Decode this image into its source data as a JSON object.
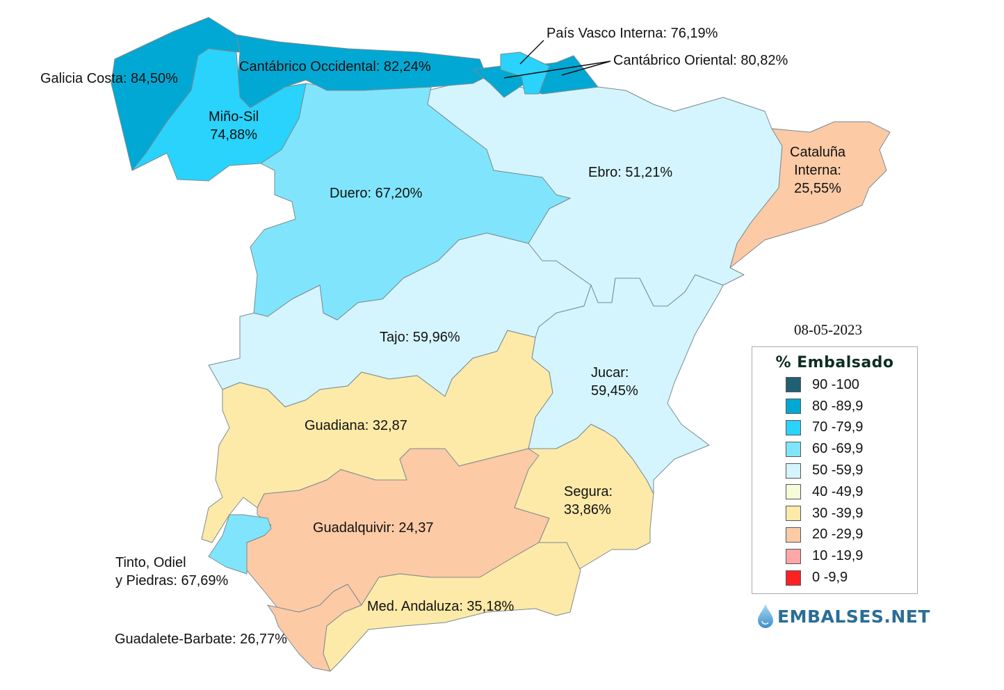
{
  "date": "08-05-2023",
  "legend": {
    "title": "% Embalsado",
    "items": [
      {
        "label": "90 -100",
        "color": "#1f6073"
      },
      {
        "label": "80 -89,9",
        "color": "#02a8d4"
      },
      {
        "label": "70 -79,9",
        "color": "#29d3fc"
      },
      {
        "label": "60 -69,9",
        "color": "#80e5fc"
      },
      {
        "label": "50 -59,9",
        "color": "#d4f5fd"
      },
      {
        "label": "40 -49,9",
        "color": "#f5fcd9"
      },
      {
        "label": "30 -39,9",
        "color": "#fdeaa8"
      },
      {
        "label": "20 -29,9",
        "color": "#fdcaa6"
      },
      {
        "label": "10 -19,9",
        "color": "#fda7a9"
      },
      {
        "label": "0 -9,9",
        "color": "#fd2222"
      }
    ]
  },
  "logo": "EMBALSES.NET",
  "basins": {
    "galicia": {
      "label": "Galicia Costa: 84,50%",
      "value": 84.5
    },
    "cant_occ": {
      "label": "Cantábrico Occidental: 82,24%",
      "value": 82.24
    },
    "pv": {
      "label": "País Vasco Interna: 76,19%",
      "value": 76.19
    },
    "cant_or": {
      "label": "Cantábrico Oriental: 80,82%",
      "value": 80.82
    },
    "mino": {
      "line1": "Miño-Sil",
      "line2": "74,88%",
      "value": 74.88
    },
    "duero": {
      "label": "Duero: 67,20%",
      "value": 67.2
    },
    "ebro": {
      "label": "Ebro: 51,21%",
      "value": 51.21
    },
    "cataluna": {
      "line1": "Cataluña",
      "line2": "Interna:",
      "line3": "25,55%",
      "value": 25.55
    },
    "tajo": {
      "label": "Tajo: 59,96%",
      "value": 59.96
    },
    "jucar": {
      "line1": "Jucar:",
      "line2": "59,45%",
      "value": 59.45
    },
    "guadiana": {
      "label": "Guadiana: 32,87",
      "value": 32.87
    },
    "segura": {
      "line1": "Segura:",
      "line2": "33,86%",
      "value": 33.86
    },
    "guadalquivir": {
      "label": "Guadalquivir: 24,37",
      "value": 24.37
    },
    "tinto": {
      "line1": "Tinto, Odiel",
      "line2": "y Piedras: 67,69%",
      "value": 67.69
    },
    "med": {
      "label": "Med. Andaluza: 35,18%",
      "value": 35.18
    },
    "guadalete": {
      "label": "Guadalete-Barbate: 26,77%",
      "value": 26.77
    }
  }
}
